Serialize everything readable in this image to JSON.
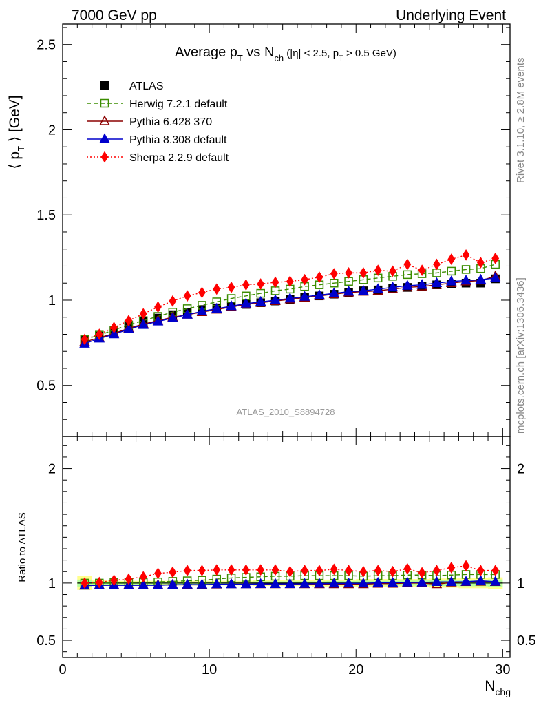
{
  "header": {
    "left": "7000 GeV pp",
    "right": "Underlying Event"
  },
  "side": {
    "rivet": "Rivet 3.1.10, ≥ 2.8M events",
    "mcplots": "mcplots.cern.ch [arXiv:1306.3436]"
  },
  "watermark": "ATLAS_2010_S8894728",
  "chart_data": [
    {
      "type": "line",
      "title": {
        "main": "Average p",
        "sub1": "T",
        "mid": " vs N",
        "sub2": "ch",
        "cut_a": " (|η| < 2.5, p",
        "sub3": "T",
        "cut_b": " > 0.5 GeV)"
      },
      "ylabel": {
        "pre": "⟨ p",
        "sub": "T",
        "post": " ⟩ [GeV]"
      },
      "ylim": [
        0.2,
        2.62
      ],
      "xlim": [
        0,
        30.5
      ],
      "yticks": [
        0.5,
        1,
        1.5,
        2,
        2.5
      ],
      "ytick_labels": [
        "0.5",
        "1",
        "1.5",
        "2",
        "2.5"
      ],
      "legend_position": "top-left",
      "x": [
        1.5,
        2.5,
        3.5,
        4.5,
        5.5,
        6.5,
        7.5,
        8.5,
        9.5,
        10.5,
        11.5,
        12.5,
        13.5,
        14.5,
        15.5,
        16.5,
        17.5,
        18.5,
        19.5,
        20.5,
        21.5,
        22.5,
        23.5,
        24.5,
        25.5,
        26.5,
        27.5,
        28.5,
        29.5
      ],
      "series": [
        {
          "name": "ATLAS",
          "color": "#000000",
          "marker": "filled-square",
          "line": "none",
          "values": [
            0.77,
            0.795,
            0.82,
            0.85,
            0.875,
            0.895,
            0.915,
            0.93,
            0.945,
            0.955,
            0.965,
            0.975,
            0.985,
            0.995,
            1.005,
            1.015,
            1.025,
            1.035,
            1.045,
            1.055,
            1.06,
            1.07,
            1.075,
            1.08,
            1.09,
            1.095,
            1.1,
            1.1,
            1.125
          ]
        },
        {
          "name": "Herwig 7.2.1 default",
          "color": "#3b8d00",
          "marker": "open-square",
          "line": "dashed",
          "values": [
            0.77,
            0.795,
            0.825,
            0.855,
            0.88,
            0.905,
            0.93,
            0.95,
            0.97,
            0.99,
            1.01,
            1.025,
            1.04,
            1.055,
            1.065,
            1.08,
            1.09,
            1.1,
            1.11,
            1.12,
            1.13,
            1.14,
            1.15,
            1.155,
            1.16,
            1.17,
            1.18,
            1.185,
            1.21
          ]
        },
        {
          "name": "Pythia 6.428 370",
          "color": "#8b0000",
          "marker": "open-triangle",
          "line": "solid",
          "values": [
            0.755,
            0.78,
            0.805,
            0.835,
            0.86,
            0.88,
            0.9,
            0.915,
            0.93,
            0.945,
            0.96,
            0.975,
            0.985,
            0.995,
            1.005,
            1.015,
            1.025,
            1.035,
            1.045,
            1.05,
            1.055,
            1.065,
            1.075,
            1.08,
            1.09,
            1.1,
            1.11,
            1.115,
            1.14
          ]
        },
        {
          "name": "Pythia 8.308 default",
          "color": "#0000cc",
          "marker": "filled-triangle",
          "line": "solid",
          "values": [
            0.745,
            0.775,
            0.8,
            0.83,
            0.855,
            0.875,
            0.895,
            0.915,
            0.935,
            0.95,
            0.965,
            0.98,
            0.99,
            1.0,
            1.01,
            1.02,
            1.03,
            1.04,
            1.05,
            1.055,
            1.065,
            1.075,
            1.085,
            1.09,
            1.1,
            1.11,
            1.115,
            1.12,
            1.13
          ]
        },
        {
          "name": "Sherpa 2.2.9 default",
          "color": "#ff0000",
          "marker": "filled-diamond",
          "line": "dotted",
          "values": [
            0.77,
            0.8,
            0.84,
            0.88,
            0.92,
            0.96,
            0.995,
            1.025,
            1.045,
            1.065,
            1.075,
            1.09,
            1.095,
            1.105,
            1.11,
            1.12,
            1.135,
            1.155,
            1.16,
            1.16,
            1.175,
            1.17,
            1.21,
            1.175,
            1.21,
            1.24,
            1.265,
            1.22,
            1.245
          ]
        }
      ]
    },
    {
      "type": "line",
      "ylabel": "Ratio to ATLAS",
      "xlabel": {
        "main": "N",
        "sub": "chg"
      },
      "ylim": [
        0.35,
        2.28
      ],
      "xlim": [
        0,
        30.5
      ],
      "yticks": [
        0.5,
        1,
        2
      ],
      "ytick_labels": [
        "0.5",
        "1",
        "2"
      ],
      "xticks": [
        0,
        10,
        20,
        30
      ],
      "xtick_labels": [
        "0",
        "10",
        "20",
        "30"
      ],
      "reference": 1.0,
      "uncertainty_bands": {
        "stat_color": "#b4ff9a",
        "total_color": "#ffff8c",
        "stat_half_width": [
          0.03,
          0.015,
          0.012,
          0.012,
          0.012,
          0.012,
          0.012,
          0.012,
          0.012,
          0.012,
          0.012,
          0.012,
          0.015,
          0.015,
          0.015,
          0.015,
          0.015,
          0.018,
          0.018,
          0.02,
          0.02,
          0.02,
          0.022,
          0.022,
          0.025,
          0.025,
          0.028,
          0.028,
          0.032
        ],
        "total_half_width": [
          0.06,
          0.025,
          0.02,
          0.02,
          0.02,
          0.02,
          0.02,
          0.02,
          0.02,
          0.02,
          0.02,
          0.02,
          0.025,
          0.025,
          0.025,
          0.025,
          0.03,
          0.03,
          0.03,
          0.035,
          0.035,
          0.035,
          0.035,
          0.035,
          0.04,
          0.04,
          0.045,
          0.045,
          0.05
        ]
      },
      "x": [
        1.5,
        2.5,
        3.5,
        4.5,
        5.5,
        6.5,
        7.5,
        8.5,
        9.5,
        10.5,
        11.5,
        12.5,
        13.5,
        14.5,
        15.5,
        16.5,
        17.5,
        18.5,
        19.5,
        20.5,
        21.5,
        22.5,
        23.5,
        24.5,
        25.5,
        26.5,
        27.5,
        28.5,
        29.5
      ],
      "series": [
        {
          "name": "Herwig 7.2.1 default",
          "color": "#3b8d00",
          "marker": "open-square",
          "line": "dashed",
          "values": [
            1.0,
            1.0,
            1.005,
            1.005,
            1.005,
            1.01,
            1.015,
            1.02,
            1.025,
            1.035,
            1.045,
            1.05,
            1.055,
            1.06,
            1.06,
            1.065,
            1.065,
            1.065,
            1.065,
            1.06,
            1.065,
            1.065,
            1.07,
            1.07,
            1.065,
            1.07,
            1.075,
            1.075,
            1.075
          ]
        },
        {
          "name": "Pythia 6.428 370",
          "color": "#8b0000",
          "marker": "open-triangle",
          "line": "solid",
          "values": [
            0.98,
            0.982,
            0.982,
            0.982,
            0.982,
            0.983,
            0.985,
            0.985,
            0.985,
            0.988,
            0.99,
            0.99,
            0.99,
            0.99,
            0.99,
            0.99,
            0.99,
            0.99,
            0.99,
            0.99,
            0.995,
            0.995,
            1.0,
            1.0,
            0.99,
            1.005,
            1.01,
            1.012,
            1.01
          ]
        },
        {
          "name": "Pythia 8.308 default",
          "color": "#0000cc",
          "marker": "filled-triangle",
          "line": "solid",
          "values": [
            0.978,
            0.98,
            0.98,
            0.98,
            0.98,
            0.98,
            0.985,
            0.987,
            0.987,
            0.99,
            0.99,
            0.99,
            0.992,
            0.992,
            0.992,
            0.993,
            0.995,
            0.996,
            0.997,
            0.997,
            1.003,
            1.003,
            1.005,
            1.005,
            1.01,
            1.01,
            1.012,
            1.02,
            1.012
          ]
        },
        {
          "name": "Sherpa 2.2.9 default",
          "color": "#ff0000",
          "marker": "filled-diamond",
          "line": "dotted",
          "values": [
            1.0,
            1.005,
            1.025,
            1.035,
            1.055,
            1.085,
            1.095,
            1.11,
            1.11,
            1.115,
            1.115,
            1.115,
            1.115,
            1.115,
            1.1,
            1.11,
            1.11,
            1.12,
            1.11,
            1.1,
            1.11,
            1.1,
            1.125,
            1.09,
            1.11,
            1.135,
            1.15,
            1.11,
            1.11
          ]
        }
      ]
    }
  ]
}
